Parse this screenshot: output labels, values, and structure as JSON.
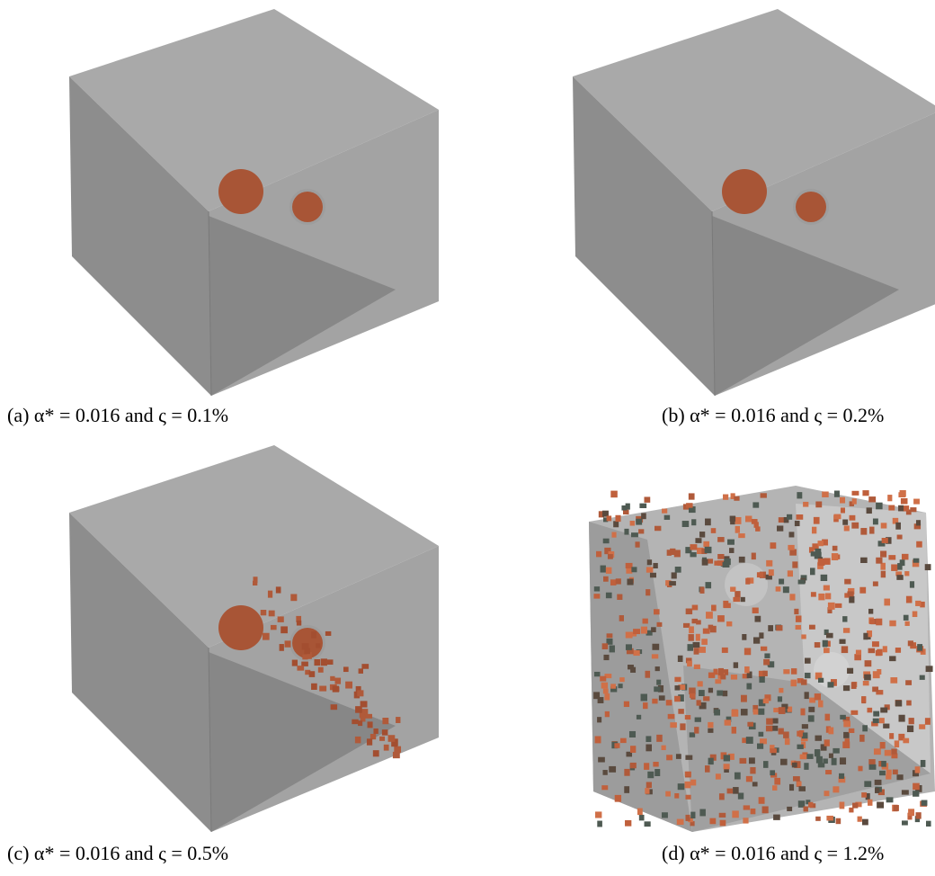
{
  "panels": [
    {
      "caption": "(a) α* = 0.016 and ς = 0.1%"
    },
    {
      "caption": "(b) α* = 0.016 and ς = 0.2%"
    },
    {
      "caption": "(c) α* = 0.016 and ς = 0.5%"
    },
    {
      "caption": "(d) α* = 0.016 and ς = 1.2%"
    }
  ]
}
